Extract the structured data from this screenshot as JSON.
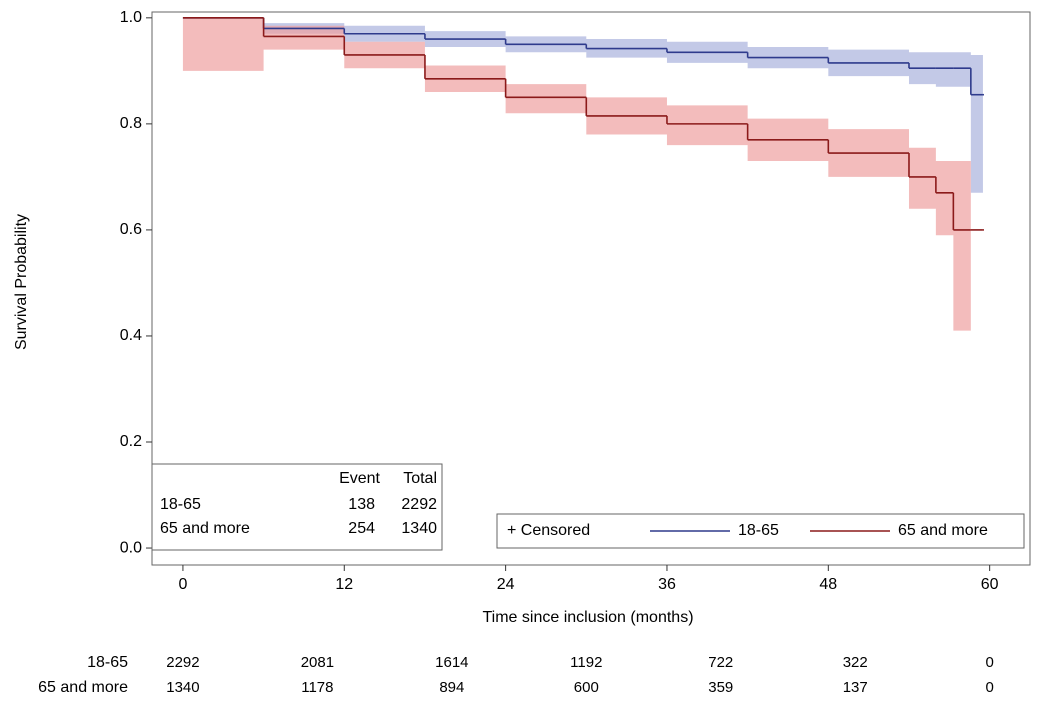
{
  "chart_data": {
    "type": "step",
    "x_label": "Time since inclusion (months)",
    "y_label": "Survival Probability",
    "xlim": [
      -2.3,
      63.0
    ],
    "ylim": [
      -0.032,
      1.011
    ],
    "xticks": [
      0,
      12,
      24,
      36,
      48,
      60
    ],
    "yticks": [
      {
        "value": 0,
        "label": "0.0"
      },
      0.2,
      0.4,
      0.6,
      0.8,
      {
        "value": 1,
        "label": "1.0"
      }
    ],
    "x": [
      0,
      6,
      12,
      18,
      24,
      30,
      36,
      42,
      48,
      54,
      56,
      57.3,
      58.6,
      59.5
    ],
    "series": [
      {
        "name": "18-65",
        "color": "#2e3a8c",
        "band_color": "#aab2dd",
        "values": [
          1.0,
          0.98,
          0.97,
          0.96,
          0.95,
          0.942,
          0.935,
          0.925,
          0.915,
          0.905,
          0.905,
          0.905,
          0.855,
          0.855
        ],
        "lower": [
          1.0,
          0.97,
          0.955,
          0.945,
          0.935,
          0.925,
          0.915,
          0.905,
          0.89,
          0.875,
          0.87,
          0.87,
          0.67,
          null
        ],
        "upper": [
          1.0,
          0.99,
          0.985,
          0.975,
          0.965,
          0.96,
          0.955,
          0.945,
          0.94,
          0.935,
          0.935,
          0.935,
          0.93,
          null
        ]
      },
      {
        "name": "65 and more",
        "color": "#8b1a1a",
        "band_color": "#eea0a0",
        "values": [
          1.0,
          0.965,
          0.93,
          0.885,
          0.85,
          0.815,
          0.8,
          0.77,
          0.745,
          0.7,
          0.67,
          0.6,
          0.6,
          0.6
        ],
        "lower": [
          0.9,
          0.94,
          0.905,
          0.86,
          0.82,
          0.78,
          0.76,
          0.73,
          0.7,
          0.64,
          0.59,
          0.41,
          null,
          null
        ],
        "upper": [
          1.0,
          0.985,
          0.955,
          0.91,
          0.875,
          0.85,
          0.835,
          0.81,
          0.79,
          0.755,
          0.73,
          0.73,
          null,
          null
        ]
      }
    ],
    "censored_label": "+ Censored",
    "summary": {
      "headers": [
        "Event",
        "Total"
      ],
      "rows": [
        [
          "138",
          "2292"
        ],
        [
          "254",
          "1340"
        ]
      ]
    },
    "at_risk": [
      [
        "2292",
        "2081",
        "1614",
        "1192",
        "722",
        "322",
        "0"
      ],
      [
        "1340",
        "1178",
        "894",
        "600",
        "359",
        "137",
        "0"
      ]
    ]
  }
}
